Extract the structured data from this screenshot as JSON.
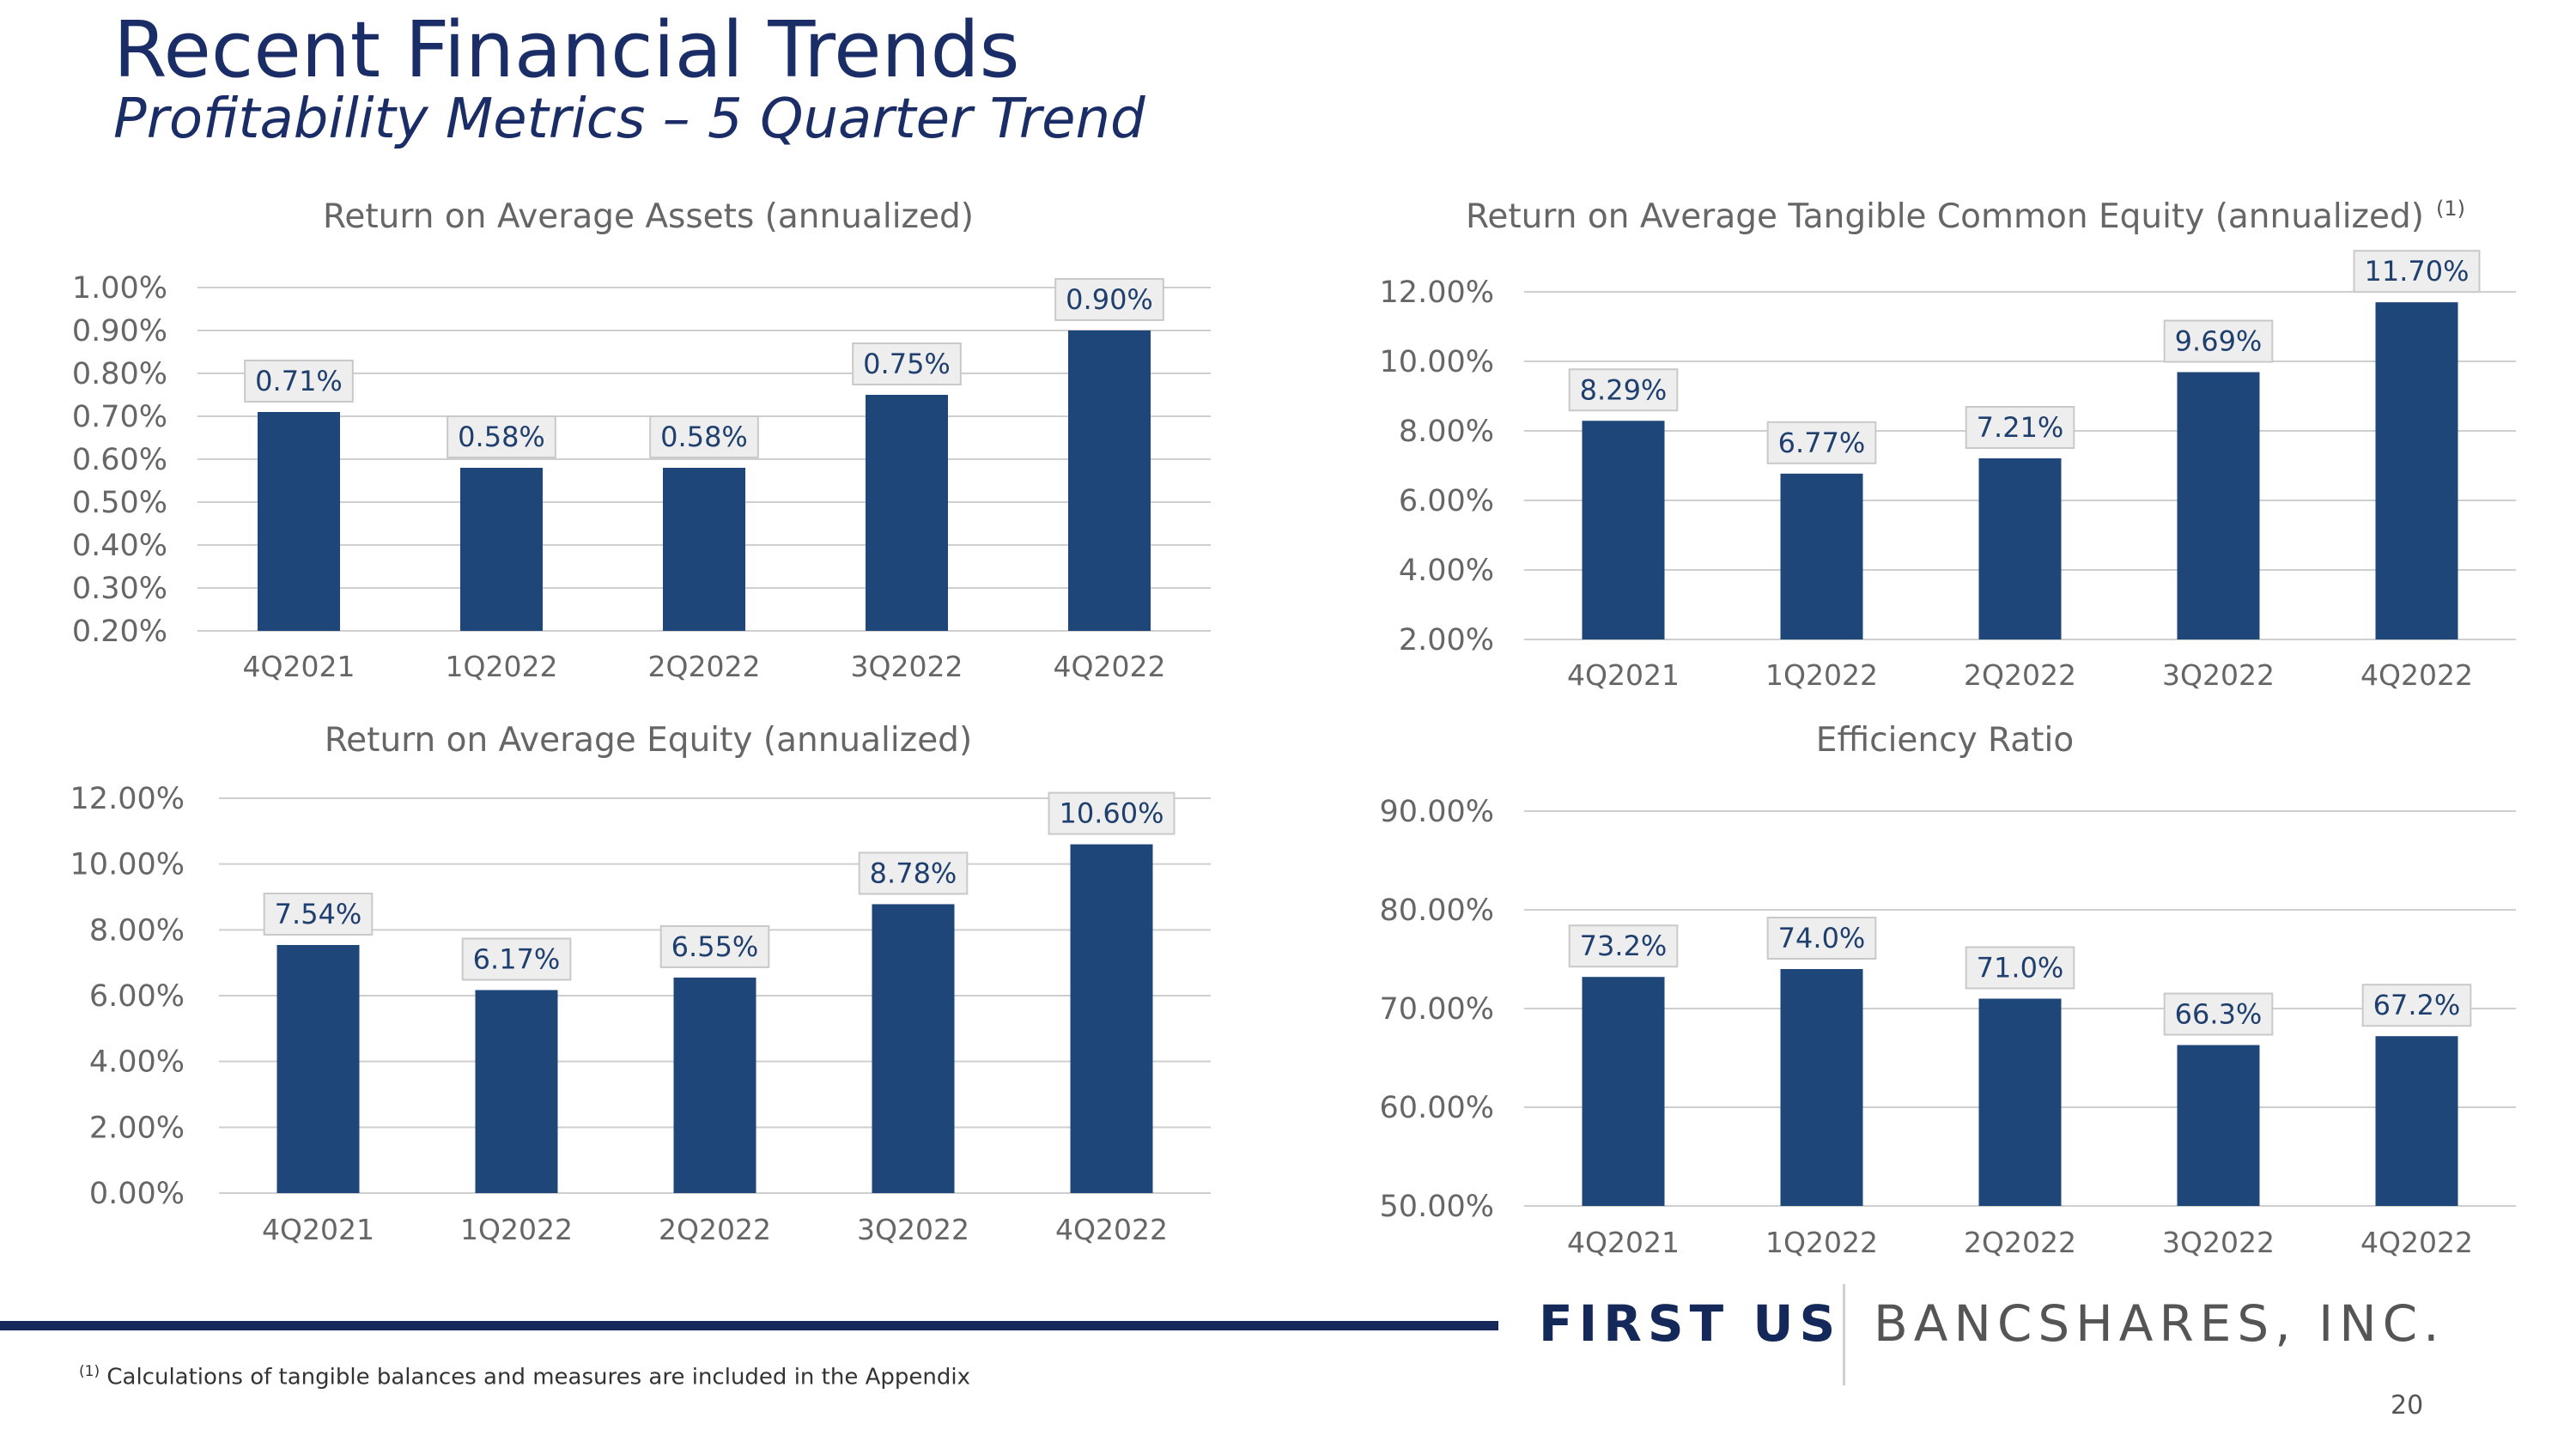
{
  "header": {
    "title": "Recent Financial Trends",
    "subtitle": "Profitability Metrics – 5 Quarter Trend"
  },
  "colors": {
    "bar": "#1f4679",
    "grid": "#cfcfcf",
    "brand": "#14285a"
  },
  "chart_data": [
    {
      "type": "bar",
      "title": "Return on Average Assets (annualized)",
      "superscript": "",
      "categories": [
        "4Q2021",
        "1Q2022",
        "2Q2022",
        "3Q2022",
        "4Q2022"
      ],
      "values": [
        0.71,
        0.58,
        0.58,
        0.75,
        0.9
      ],
      "data_labels": [
        "0.71%",
        "0.58%",
        "0.58%",
        "0.75%",
        "0.90%"
      ],
      "yticks": [
        "0.20%",
        "0.30%",
        "0.40%",
        "0.50%",
        "0.60%",
        "0.70%",
        "0.80%",
        "0.90%",
        "1.00%"
      ],
      "ylim": [
        0.2,
        1.0
      ],
      "xlabel": "",
      "ylabel": "",
      "grid": true
    },
    {
      "type": "bar",
      "title": "Return on Average Tangible Common Equity (annualized)",
      "superscript": "(1)",
      "categories": [
        "4Q2021",
        "1Q2022",
        "2Q2022",
        "3Q2022",
        "4Q2022"
      ],
      "values": [
        8.29,
        6.77,
        7.21,
        9.69,
        11.7
      ],
      "data_labels": [
        "8.29%",
        "6.77%",
        "7.21%",
        "9.69%",
        "11.70%"
      ],
      "yticks": [
        "2.00%",
        "4.00%",
        "6.00%",
        "8.00%",
        "10.00%",
        "12.00%"
      ],
      "ylim": [
        2,
        12
      ],
      "xlabel": "",
      "ylabel": "",
      "grid": true
    },
    {
      "type": "bar",
      "title": "Return on Average Equity (annualized)",
      "superscript": "",
      "categories": [
        "4Q2021",
        "1Q2022",
        "2Q2022",
        "3Q2022",
        "4Q2022"
      ],
      "values": [
        7.54,
        6.17,
        6.55,
        8.78,
        10.6
      ],
      "data_labels": [
        "7.54%",
        "6.17%",
        "6.55%",
        "8.78%",
        "10.60%"
      ],
      "yticks": [
        "0.00%",
        "2.00%",
        "4.00%",
        "6.00%",
        "8.00%",
        "10.00%",
        "12.00%"
      ],
      "ylim": [
        0,
        12
      ],
      "xlabel": "",
      "ylabel": "",
      "grid": true
    },
    {
      "type": "bar",
      "title": "Efficiency Ratio",
      "superscript": "",
      "categories": [
        "4Q2021",
        "1Q2022",
        "2Q2022",
        "3Q2022",
        "4Q2022"
      ],
      "values": [
        73.2,
        74.0,
        71.0,
        66.3,
        67.2
      ],
      "data_labels": [
        "73.2%",
        "74.0%",
        "71.0%",
        "66.3%",
        "67.2%"
      ],
      "yticks": [
        "50.00%",
        "60.00%",
        "70.00%",
        "80.00%",
        "90.00%"
      ],
      "ylim": [
        50,
        90
      ],
      "xlabel": "",
      "ylabel": "",
      "grid": true
    }
  ],
  "logo": {
    "first": "FIRST US",
    "rest": "BANCSHARES, INC."
  },
  "footnote": {
    "marker": "(1)",
    "text": "Calculations of tangible balances and measures are included in the Appendix"
  },
  "page_number": "20"
}
